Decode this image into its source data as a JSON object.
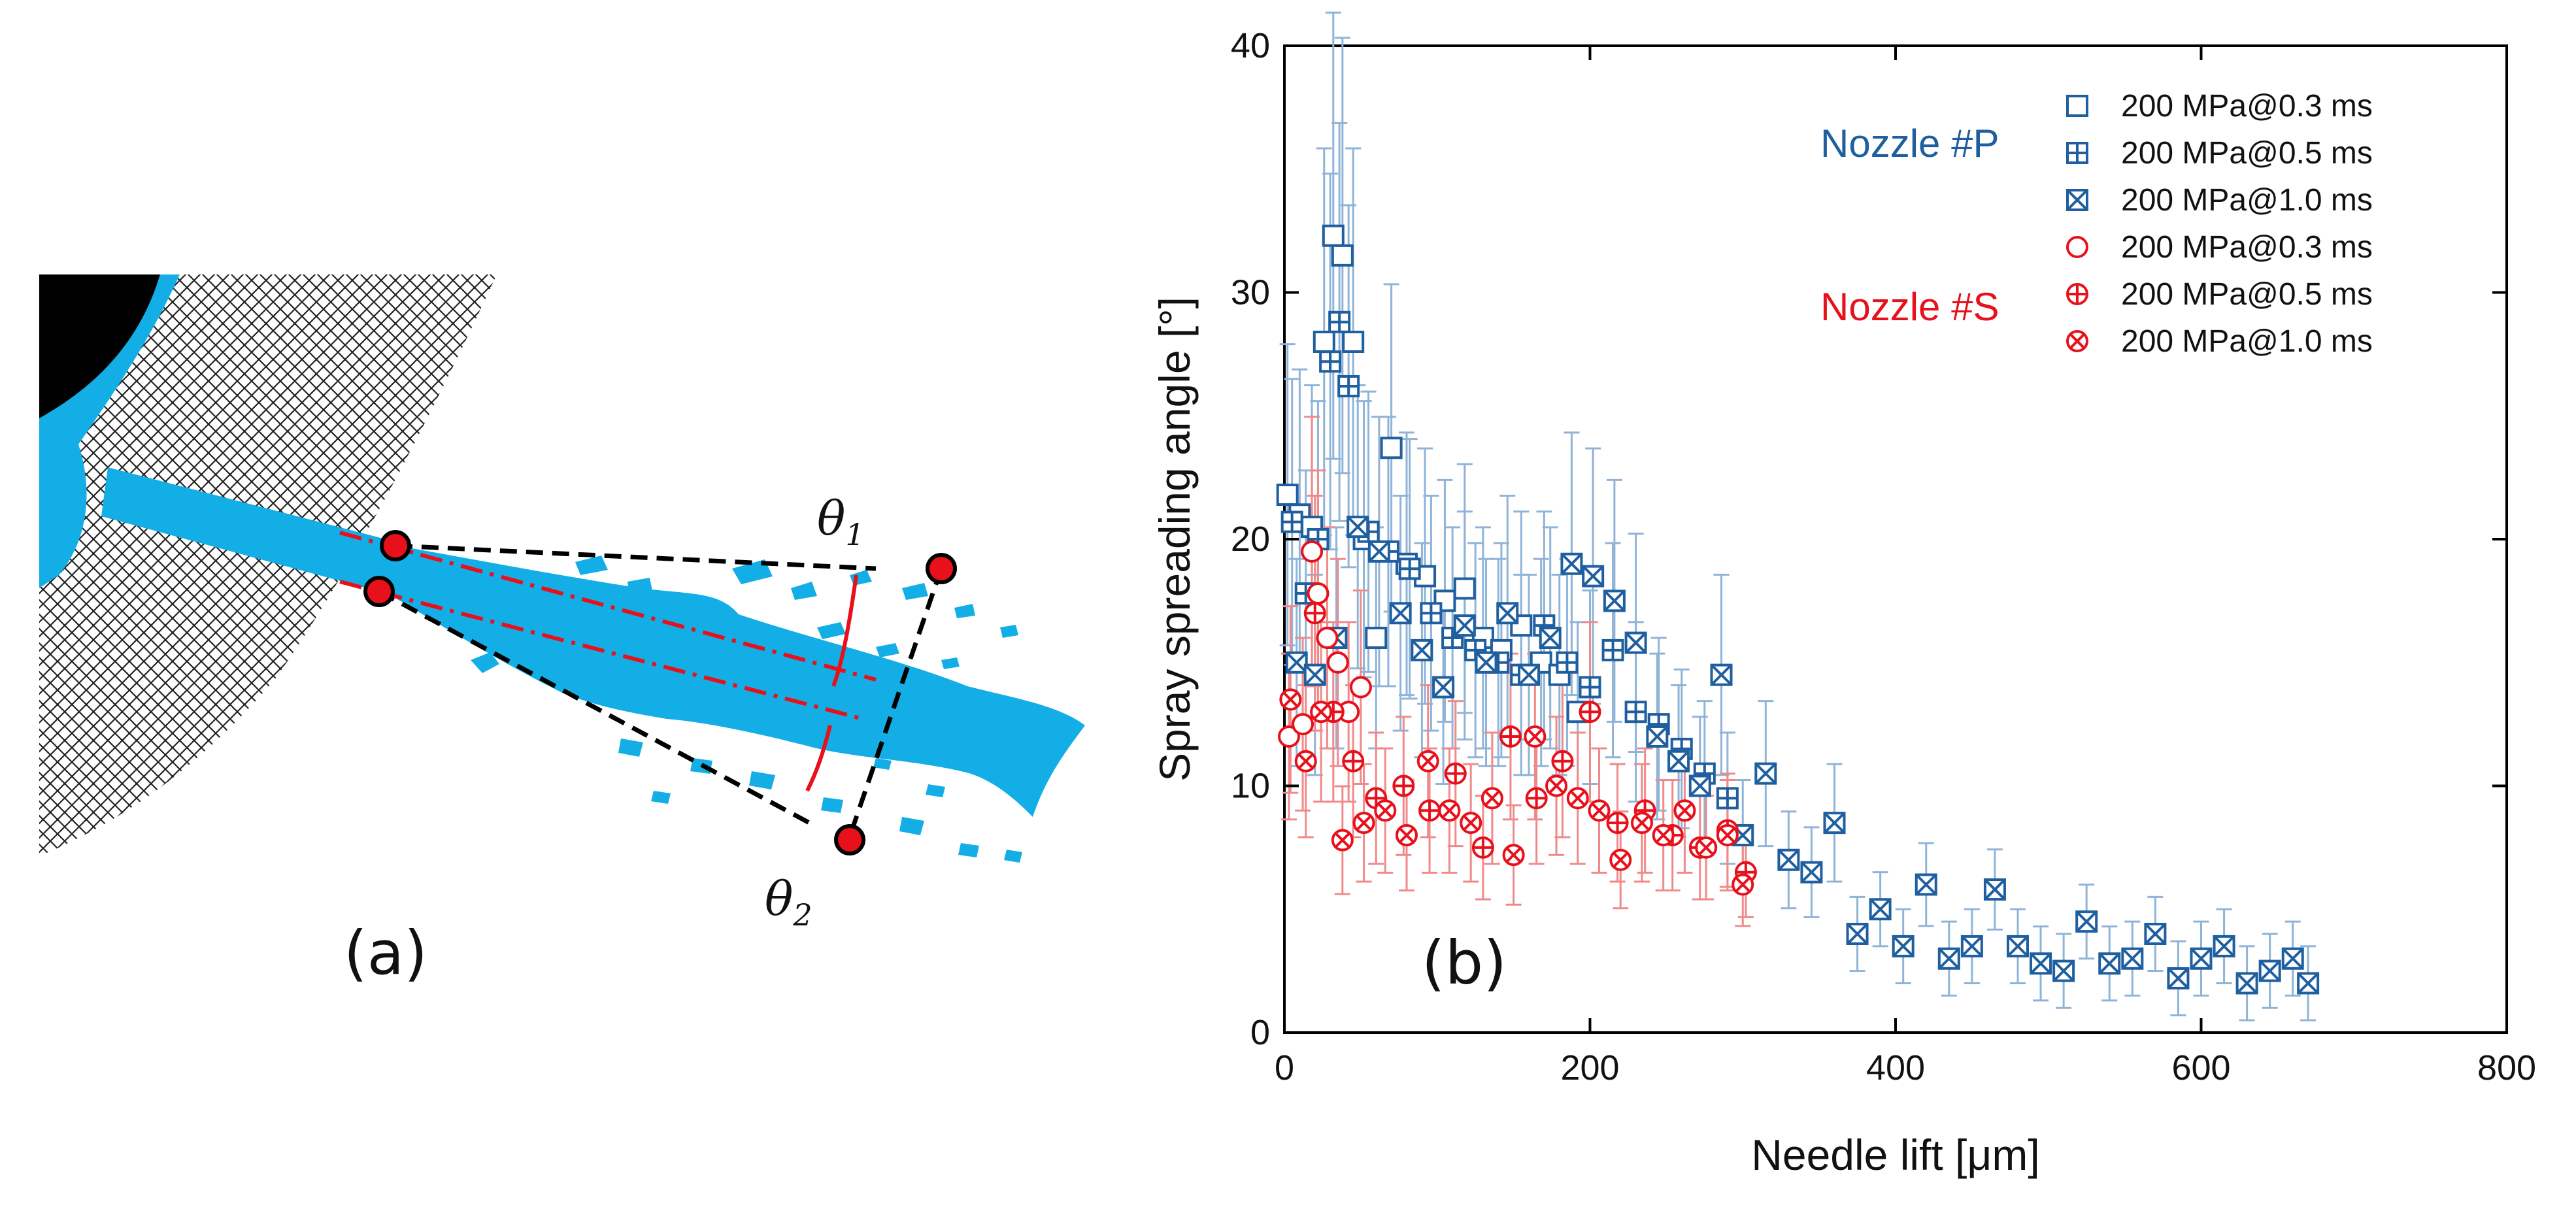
{
  "panel_a": {
    "label": "(a)",
    "theta1": "θ",
    "theta1_sub": "1",
    "theta2": "θ",
    "theta2_sub": "2"
  },
  "chart_data": {
    "type": "scatter",
    "panel_label": "(b)",
    "xlabel": "Needle lift [μm]",
    "ylabel": "Spray spreading angle [°]",
    "xlim": [
      0,
      800
    ],
    "ylim": [
      0,
      40
    ],
    "xticks": [
      "0",
      "200",
      "400",
      "600",
      "800"
    ],
    "yticks": [
      "0",
      "10",
      "20",
      "30",
      "40"
    ],
    "group_labels": {
      "P": "Nozzle #P",
      "S": "Nozzle #S"
    },
    "colors": {
      "P": "#1f5fa0",
      "S": "#e8101a",
      "P_err": "#8fb4d8",
      "S_err": "#f08a8a"
    },
    "series": [
      {
        "name": "200 MPa@0.3 ms",
        "group": "P",
        "marker": "square",
        "x": [
          2,
          10,
          18,
          26,
          32,
          38,
          45,
          52,
          60,
          70,
          80,
          92,
          105,
          118,
          130,
          142,
          155,
          168,
          180,
          192
        ],
        "y": [
          21.8,
          21,
          20.5,
          28,
          32.3,
          31.5,
          28,
          20,
          16,
          23.7,
          19,
          18.5,
          17.5,
          18,
          16,
          15.5,
          16.5,
          15,
          14.5,
          13
        ]
      },
      {
        "name": "200 MPa@0.5 ms",
        "group": "P",
        "marker": "square-plus",
        "x": [
          5,
          14,
          22,
          30,
          36,
          42,
          55,
          68,
          82,
          96,
          110,
          125,
          140,
          155,
          170,
          185,
          200,
          215,
          230,
          245,
          260,
          275,
          290
        ],
        "y": [
          20.7,
          17.8,
          20,
          27.2,
          28.8,
          26.2,
          20.3,
          19.5,
          18.8,
          17,
          16,
          15.5,
          15,
          14.5,
          16.5,
          15,
          14,
          15.5,
          13,
          12.5,
          11.5,
          10.5,
          9.5
        ]
      },
      {
        "name": "200 MPa@1.0 ms",
        "group": "P",
        "marker": "square-x",
        "x": [
          8,
          20,
          34,
          48,
          62,
          76,
          90,
          104,
          118,
          132,
          146,
          160,
          174,
          188,
          202,
          216,
          230,
          244,
          258,
          272,
          286,
          300,
          315,
          330,
          345,
          360,
          375,
          390,
          405,
          420,
          435,
          450,
          465,
          480,
          495,
          510,
          525,
          540,
          555,
          570,
          585,
          600,
          615,
          630,
          645,
          660,
          670
        ],
        "y": [
          15,
          14.5,
          16,
          20.5,
          19.5,
          17,
          15.5,
          14,
          16.5,
          15,
          17,
          14.5,
          16,
          19,
          18.5,
          17.5,
          15.8,
          12,
          11,
          10,
          14.5,
          8,
          10.5,
          7,
          6.5,
          8.5,
          4,
          5,
          3.5,
          6,
          3,
          3.5,
          5.8,
          3.5,
          2.8,
          2.5,
          4.5,
          2.8,
          3,
          4,
          2.2,
          3,
          3.5,
          2,
          2.5,
          3,
          2
        ]
      },
      {
        "name": "200 MPa@0.3 ms",
        "group": "S",
        "marker": "circle",
        "x": [
          3,
          12,
          18,
          22,
          28,
          35,
          42,
          50
        ],
        "y": [
          12,
          12.5,
          19.5,
          17.8,
          16,
          15,
          13,
          14
        ]
      },
      {
        "name": "200 MPa@0.5 ms",
        "group": "S",
        "marker": "circle-plus",
        "x": [
          20,
          32,
          45,
          60,
          78,
          95,
          112,
          130,
          148,
          165,
          182,
          200,
          218,
          236,
          254,
          272,
          290,
          302
        ],
        "y": [
          17,
          13,
          11,
          9.5,
          10,
          9,
          10.5,
          7.5,
          12,
          9.5,
          11,
          13,
          8.5,
          9,
          8,
          7.5,
          8.2,
          6.5
        ]
      },
      {
        "name": "200 MPa@1.0 ms",
        "group": "S",
        "marker": "circle-x",
        "x": [
          4,
          14,
          24,
          38,
          52,
          66,
          80,
          94,
          108,
          122,
          136,
          150,
          164,
          178,
          192,
          206,
          220,
          234,
          248,
          262,
          276,
          290,
          300
        ],
        "y": [
          13.5,
          11,
          13,
          7.8,
          8.5,
          9,
          8,
          11,
          9,
          8.5,
          9.5,
          7.2,
          12,
          10,
          9.5,
          9,
          7,
          8.5,
          8,
          9,
          7.5,
          8,
          6
        ]
      }
    ]
  }
}
